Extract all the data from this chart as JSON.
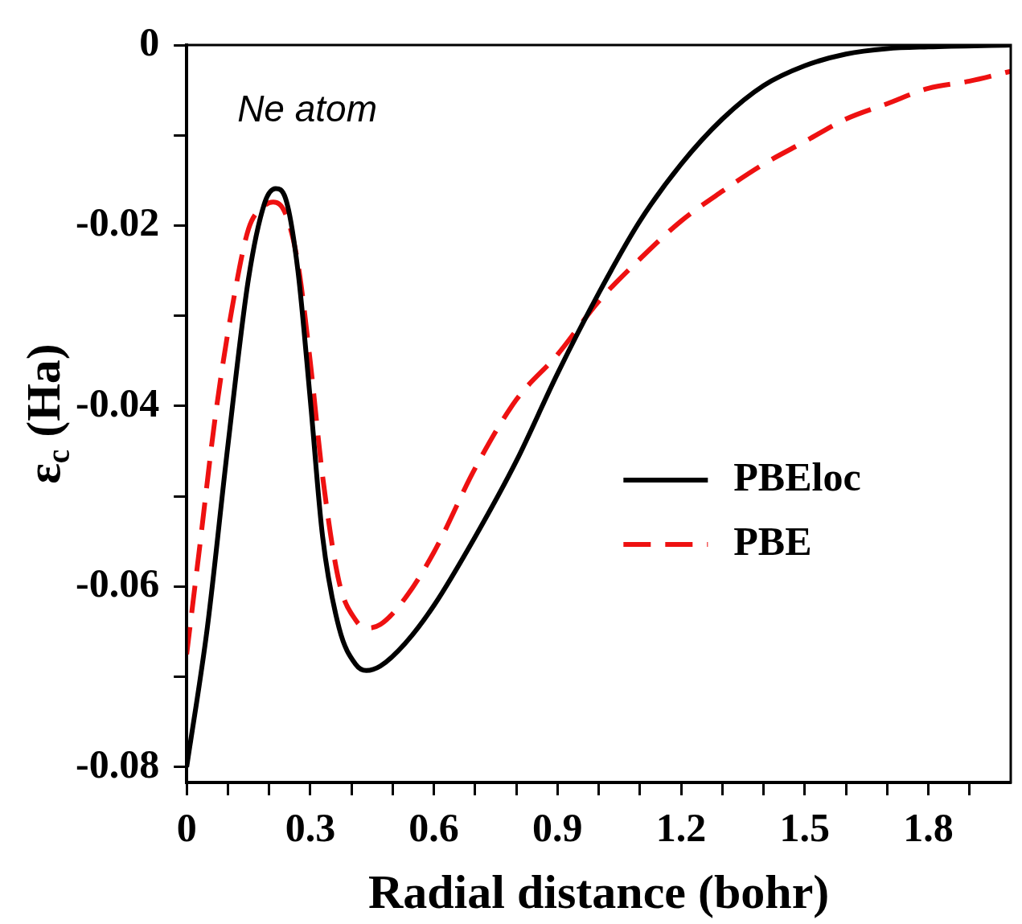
{
  "chart_data": {
    "type": "line",
    "xlabel": "Radial distance (bohr)",
    "ylabel": "ε$_{c}$ (Ha)",
    "annotations": [
      "Ne atom"
    ],
    "xlim": [
      0,
      2
    ],
    "ylim": [
      -0.0817,
      0
    ],
    "xticks": [
      0,
      {
        "value": 0.1,
        "label": null
      },
      {
        "value": 0.2,
        "label": null
      },
      0.3,
      {
        "value": 0.4,
        "label": null
      },
      {
        "value": 0.5,
        "label": null
      },
      0.6,
      {
        "value": 0.7,
        "label": null
      },
      {
        "value": 0.8,
        "label": null
      },
      0.9,
      {
        "value": 1.0,
        "label": null
      },
      {
        "value": 1.1,
        "label": null
      },
      1.2,
      {
        "value": 1.3,
        "label": null
      },
      {
        "value": 1.4,
        "label": null
      },
      1.5,
      {
        "value": 1.6,
        "label": null
      },
      {
        "value": 1.7,
        "label": null
      },
      1.8,
      {
        "value": 1.9,
        "label": null
      }
    ],
    "yticks": [
      -0.08,
      {
        "value": -0.07,
        "label": null
      },
      -0.06,
      {
        "value": -0.05,
        "label": null
      },
      -0.04,
      {
        "value": -0.03,
        "label": null
      },
      -0.02,
      {
        "value": -0.01,
        "label": null
      },
      0
    ],
    "grid": false,
    "legend": "right",
    "marker": "none",
    "series": [
      {
        "name": "PBEloc",
        "color": "#000000",
        "line_style": "solid",
        "x": [
          0,
          0.05,
          0.1,
          0.15,
          0.19,
          0.216,
          0.24,
          0.27,
          0.3,
          0.33,
          0.37,
          0.41,
          0.436,
          0.47,
          0.53,
          0.6,
          0.7,
          0.8,
          0.9,
          1.0,
          1.1,
          1.2,
          1.3,
          1.4,
          1.5,
          1.6,
          1.7,
          1.8,
          2.0
        ],
        "values": [
          -0.08,
          -0.0646,
          -0.0444,
          -0.0259,
          -0.0174,
          -0.0159,
          -0.017,
          -0.025,
          -0.0393,
          -0.0545,
          -0.0646,
          -0.0686,
          -0.0693,
          -0.0688,
          -0.0663,
          -0.0621,
          -0.0545,
          -0.0461,
          -0.0364,
          -0.0275,
          -0.0195,
          -0.0132,
          -0.0082,
          -0.0045,
          -0.0023,
          -0.001,
          -0.0004,
          -0.0002,
          0
        ]
      },
      {
        "name": "PBE",
        "color": "#ee1111",
        "line_style": "dashed",
        "x": [
          0,
          0.03,
          0.07,
          0.11,
          0.15,
          0.186,
          0.21,
          0.24,
          0.27,
          0.3,
          0.33,
          0.37,
          0.41,
          0.436,
          0.47,
          0.53,
          0.6,
          0.7,
          0.8,
          0.9,
          1.0,
          1.1,
          1.2,
          1.3,
          1.4,
          1.5,
          1.6,
          1.7,
          1.8,
          1.9,
          2.0
        ],
        "values": [
          -0.0675,
          -0.0562,
          -0.041,
          -0.0292,
          -0.0204,
          -0.0179,
          -0.0174,
          -0.0187,
          -0.0242,
          -0.0351,
          -0.0478,
          -0.0595,
          -0.0637,
          -0.0646,
          -0.0642,
          -0.0613,
          -0.0562,
          -0.0469,
          -0.0393,
          -0.0343,
          -0.0284,
          -0.0237,
          -0.0195,
          -0.0162,
          -0.0132,
          -0.0107,
          -0.0082,
          -0.0065,
          -0.0048,
          -0.004,
          -0.0029
        ]
      }
    ]
  }
}
